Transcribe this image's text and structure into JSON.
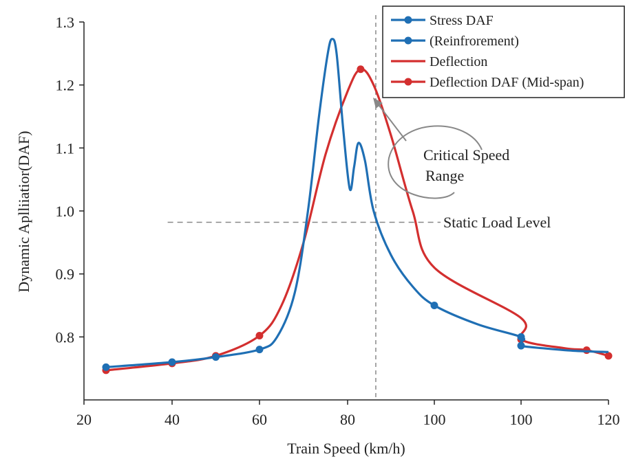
{
  "chart_data": {
    "type": "line",
    "xlabel": "Train Speed (km/h)",
    "ylabel": "Dynamic Aplliiatior(DAF)",
    "x_tick_labels": [
      "20",
      "40",
      "60",
      "80",
      "100",
      "100",
      "100",
      "120"
    ],
    "y_tick_labels": [
      "0.8",
      "0.9",
      "1.0",
      "1.1",
      "1.2",
      "1.3"
    ],
    "y_ticks": [
      0.8,
      0.9,
      1.0,
      1.1,
      1.2,
      1.3
    ],
    "ylim": [
      0.7,
      1.3
    ],
    "grid": false,
    "legend_position": "top-right",
    "series": [
      {
        "name": "Stress DAF",
        "color": "#1f6fb4",
        "marker": "circle",
        "values": [
          [
            25,
            0.752
          ],
          [
            40,
            0.76
          ],
          [
            50,
            0.768
          ],
          [
            60,
            0.78
          ],
          [
            64,
            0.8
          ],
          [
            68,
            0.87
          ],
          [
            71,
            1.0
          ],
          [
            73.5,
            1.15
          ],
          [
            75.5,
            1.25
          ],
          [
            76.5,
            1.273
          ],
          [
            77.5,
            1.25
          ],
          [
            79,
            1.13
          ],
          [
            80.5,
            1.035
          ],
          [
            81.5,
            1.07
          ],
          [
            82.5,
            1.108
          ],
          [
            84,
            1.08
          ],
          [
            86,
            1.0
          ],
          [
            90,
            0.93
          ],
          [
            95,
            0.88
          ],
          [
            100,
            0.85
          ],
          [
            105,
            0.82
          ],
          [
            110,
            0.8
          ],
          [
            115,
            0.792
          ],
          [
            120,
            0.786
          ],
          [
            125,
            0.782
          ],
          [
            132,
            0.778
          ],
          [
            140,
            0.776
          ]
        ]
      },
      {
        "name": "(Reinfrorement)",
        "color": "#1f6fb4",
        "marker": "circle",
        "values": []
      },
      {
        "name": "Deflection",
        "color": "#d32f2f",
        "marker": "none",
        "values": []
      },
      {
        "name": "Deflection DAF (Mid-span)",
        "color": "#d32f2f",
        "marker": "circle",
        "values": [
          [
            25,
            0.747
          ],
          [
            40,
            0.758
          ],
          [
            50,
            0.77
          ],
          [
            60,
            0.802
          ],
          [
            65,
            0.85
          ],
          [
            70,
            0.95
          ],
          [
            75,
            1.09
          ],
          [
            80,
            1.19
          ],
          [
            83,
            1.225
          ],
          [
            86,
            1.2
          ],
          [
            90,
            1.12
          ],
          [
            95,
            1.0
          ],
          [
            100,
            0.91
          ],
          [
            110,
            0.83
          ],
          [
            120,
            0.796
          ],
          [
            130,
            0.782
          ],
          [
            135,
            0.779
          ],
          [
            140,
            0.77
          ]
        ]
      }
    ],
    "reference_lines": {
      "static_load_level": {
        "y": 0.982,
        "x_from": 39,
        "x_to": 100
      },
      "critical_speed": {
        "x": 86.5
      }
    },
    "annotations": {
      "critical_speed_range": "Critical Speed\nRange",
      "static_load_level": "Static Load Level"
    }
  }
}
